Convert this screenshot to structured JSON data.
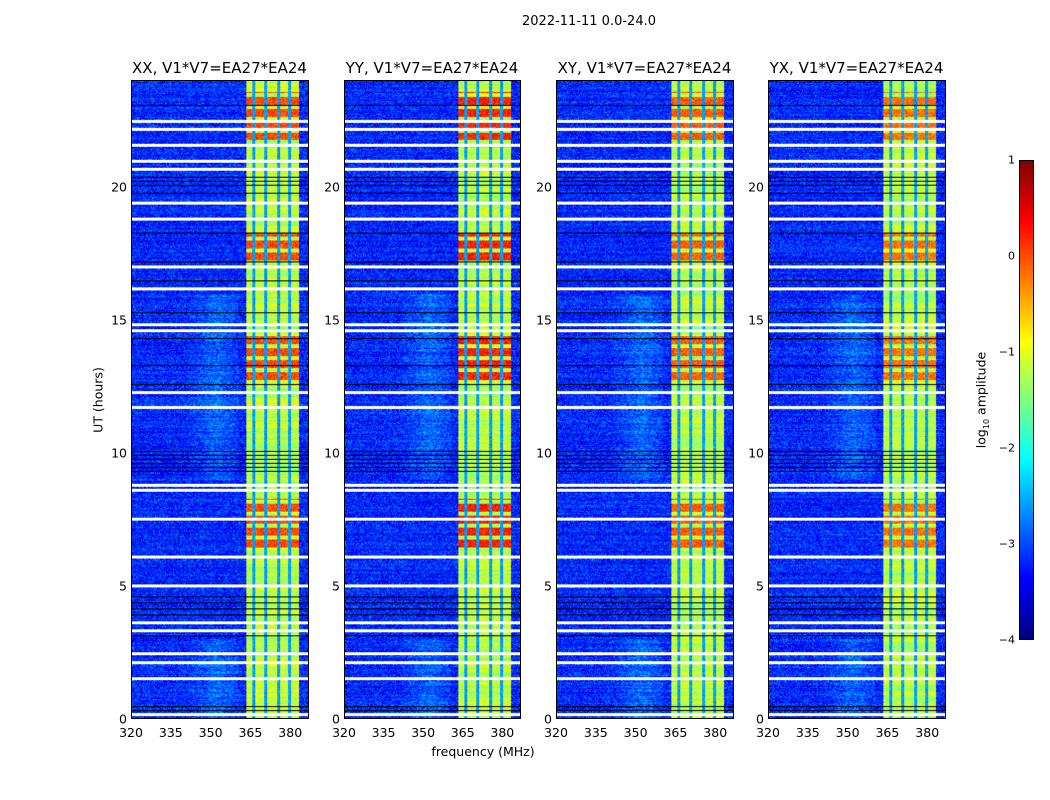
{
  "chart_data": {
    "type": "heatmap",
    "title": "2022-11-11 0.0-24.0",
    "xlabel": "frequency (MHz)",
    "ylabel": "UT (hours)",
    "xlim": [
      320,
      386.7
    ],
    "ylim": [
      0,
      24
    ],
    "xticks": [
      "320",
      "335",
      "350",
      "365",
      "380"
    ],
    "xtick_values": [
      320,
      335,
      350,
      365,
      380
    ],
    "yticks": [
      "0",
      "5",
      "10",
      "15",
      "20"
    ],
    "ytick_values": [
      0,
      5,
      10,
      15,
      20
    ],
    "colormap": "jet",
    "colorbar": {
      "label_main": "log",
      "label_sub": "10",
      "label_rest": " amplitude",
      "range": [
        -4,
        1
      ],
      "ticks": [
        "1",
        "0",
        "−1",
        "−2",
        "−3",
        "−4"
      ],
      "tick_values": [
        1,
        0,
        -1,
        -2,
        -3,
        -4
      ]
    },
    "panels": [
      {
        "title": "XX, V1*V7=EA27*EA24",
        "strong_band_level": 0.2
      },
      {
        "title": "YY, V1*V7=EA27*EA24",
        "strong_band_level": 0.4
      },
      {
        "title": "XY, V1*V7=EA27*EA24",
        "strong_band_level": 0.1
      },
      {
        "title": "YX, V1*V7=EA27*EA24",
        "strong_band_level": 0.0
      }
    ],
    "background_level": -3.2,
    "band": {
      "freq_range": [
        363,
        383
      ],
      "level": -1.2,
      "gap_channels": [
        366,
        370.5,
        375.5,
        379.5
      ]
    },
    "bright_periods_hours": [
      [
        21.8,
        23.6
      ],
      [
        12.6,
        14.5
      ],
      [
        17.2,
        18.3
      ],
      [
        6.3,
        8.3
      ]
    ],
    "flagged_white_rows_hours": [
      0.15,
      1.5,
      2.1,
      2.45,
      3.3,
      3.6,
      5.0,
      6.1,
      7.5,
      8.6,
      8.8,
      11.7,
      12.3,
      14.6,
      14.85,
      16.2,
      17.0,
      18.8,
      19.4,
      20.7,
      21.0,
      21.6,
      22.2,
      22.5
    ],
    "black_rows_hours": [
      0.3,
      0.45,
      3.1,
      3.9,
      4.15,
      4.35,
      4.6,
      9.3,
      9.45,
      9.6,
      9.75,
      9.9,
      10.05,
      12.6,
      13.3,
      14.3,
      15.3,
      16.5,
      17.2,
      18.3,
      19.8,
      20.1,
      20.25,
      20.4,
      23.1
    ]
  }
}
